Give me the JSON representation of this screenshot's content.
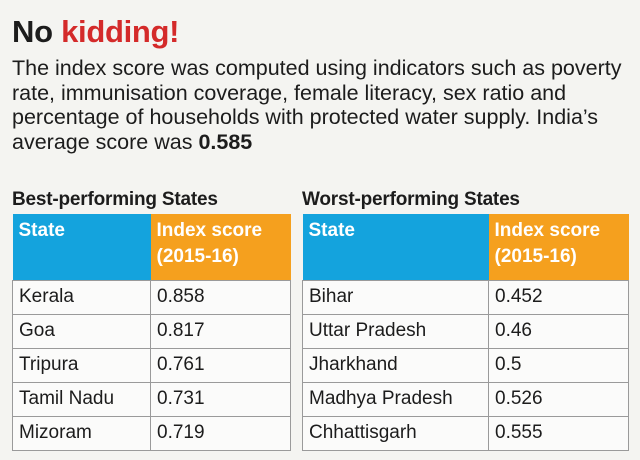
{
  "headline": {
    "part1": "No",
    "part2": "kidding!"
  },
  "intro": {
    "text": "The index score was computed using indicators such as poverty rate, immunisation coverage, female literacy, sex ratio and percentage of households with protected water supply. India’s average score was ",
    "value": "0.585"
  },
  "colors": {
    "state_header": "#14a3dd",
    "score_header": "#f5a01e",
    "accent": "#d42a2a"
  },
  "chart_data": [
    {
      "type": "table",
      "title": "Best-performing States",
      "columns": [
        "State",
        "Index score (2015-16)"
      ],
      "rows": [
        [
          "Kerala",
          "0.858"
        ],
        [
          "Goa",
          "0.817"
        ],
        [
          "Tripura",
          "0.761"
        ],
        [
          "Tamil Nadu",
          "0.731"
        ],
        [
          "Mizoram",
          "0.719"
        ]
      ]
    },
    {
      "type": "table",
      "title": "Worst-performing States",
      "columns": [
        "State",
        "Index score (2015-16)"
      ],
      "rows": [
        [
          "Bihar",
          "0.452"
        ],
        [
          "Uttar Pradesh",
          "0.46"
        ],
        [
          "Jharkhand",
          "0.5"
        ],
        [
          "Madhya Pradesh",
          "0.526"
        ],
        [
          "Chhattisgarh",
          "0.555"
        ]
      ]
    }
  ]
}
